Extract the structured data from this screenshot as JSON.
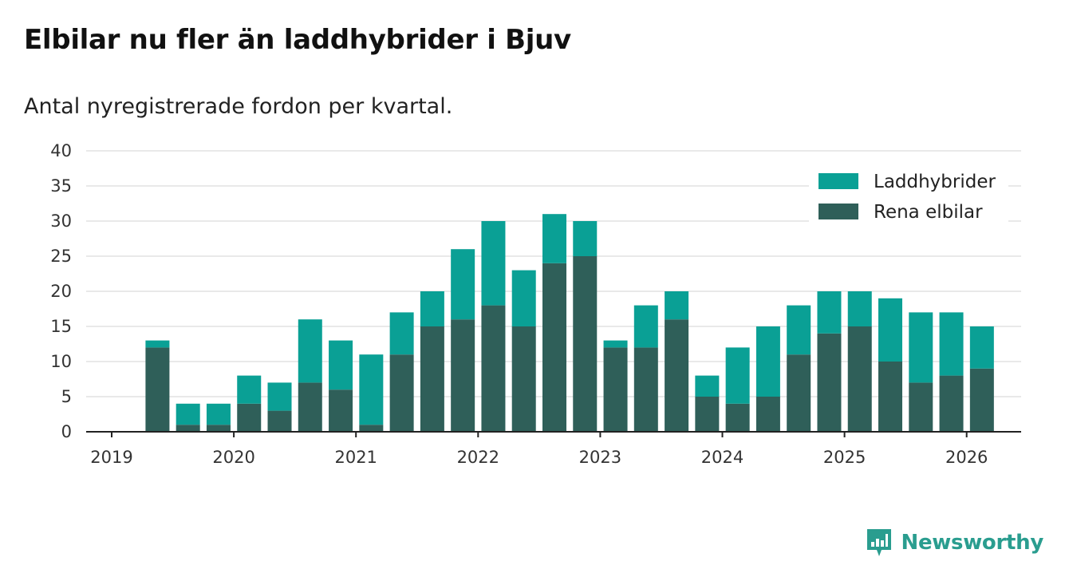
{
  "title": "Elbilar nu fler än laddhybrider i Bjuv",
  "subtitle": "Antal nyregistrerade fordon per kvartal.",
  "brand": "Newsworthy",
  "colors": {
    "phev": "#0aa095",
    "bev": "#2f5f59"
  },
  "chart_data": {
    "type": "bar",
    "stacked": true,
    "categories": [
      "2019 Q2",
      "2019 Q3",
      "2019 Q4",
      "2020 Q1",
      "2020 Q2",
      "2020 Q3",
      "2020 Q4",
      "2021 Q1",
      "2021 Q2",
      "2021 Q3",
      "2021 Q4",
      "2022 Q1",
      "2022 Q2",
      "2022 Q3",
      "2022 Q4",
      "2023 Q1",
      "2023 Q2",
      "2023 Q3",
      "2023 Q4",
      "2024 Q1",
      "2024 Q2",
      "2024 Q3",
      "2024 Q4",
      "2025 Q1",
      "2025 Q2",
      "2025 Q3",
      "2025 Q4",
      "2026 Q1"
    ],
    "series": [
      {
        "name": "Rena elbilar",
        "values": [
          12,
          1,
          1,
          4,
          3,
          7,
          6,
          1,
          11,
          15,
          16,
          18,
          15,
          24,
          25,
          12,
          12,
          16,
          5,
          4,
          5,
          11,
          14,
          15,
          10,
          7,
          8,
          9
        ]
      },
      {
        "name": "Laddhybrider",
        "values": [
          1,
          3,
          3,
          4,
          4,
          9,
          7,
          10,
          6,
          5,
          10,
          12,
          8,
          7,
          5,
          1,
          6,
          4,
          3,
          8,
          10,
          7,
          6,
          5,
          9,
          10,
          9,
          6
        ]
      }
    ],
    "legend": [
      "Laddhybrider",
      "Rena elbilar"
    ],
    "legend_position": "top-right",
    "x_ticks": [
      "2019",
      "2020",
      "2021",
      "2022",
      "2023",
      "2024",
      "2025",
      "2026"
    ],
    "y_ticks": [
      "0",
      "5",
      "10",
      "15",
      "20",
      "25",
      "30",
      "35",
      "40"
    ],
    "ylim": [
      0,
      40
    ],
    "xlabel": "",
    "ylabel": "",
    "grid": true
  }
}
